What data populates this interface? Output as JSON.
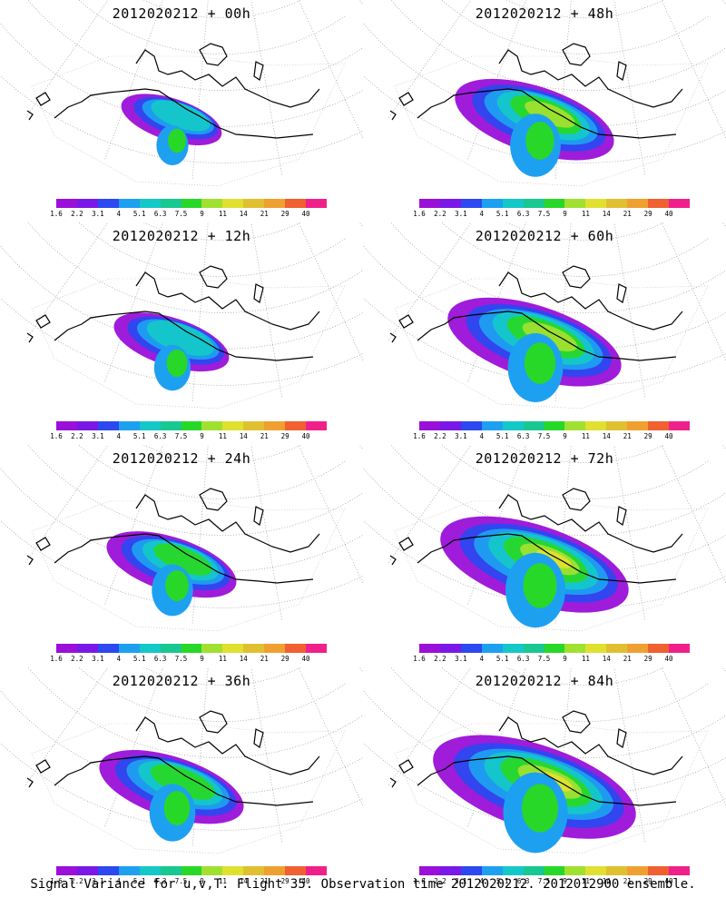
{
  "panels": [
    {
      "title": "2012020212 + 00h",
      "stage": 0
    },
    {
      "title": "2012020212 + 48h",
      "stage": 4
    },
    {
      "title": "2012020212 + 12h",
      "stage": 1
    },
    {
      "title": "2012020212 + 60h",
      "stage": 5
    },
    {
      "title": "2012020212 + 24h",
      "stage": 2
    },
    {
      "title": "2012020212 + 72h",
      "stage": 6
    },
    {
      "title": "2012020212 + 36h",
      "stage": 3
    },
    {
      "title": "2012020212 + 84h",
      "stage": 7
    }
  ],
  "colorbar": {
    "labels": [
      "1.6",
      "2.2",
      "3.1",
      "4",
      "5.1",
      "6.3",
      "7.5",
      "9",
      "11",
      "14",
      "21",
      "29",
      "40"
    ],
    "colors": [
      "#9a10d8",
      "#7a18e8",
      "#2c48f0",
      "#1ea0f0",
      "#14c8c8",
      "#18c890",
      "#28d828",
      "#a0e030",
      "#e0e030",
      "#e0c030",
      "#f0a030",
      "#f06030",
      "#f0208a"
    ]
  },
  "caption": "Signal Variance for u,v,T. Flight 35. Observation time 2012020212. 2012012900 ensemble."
}
